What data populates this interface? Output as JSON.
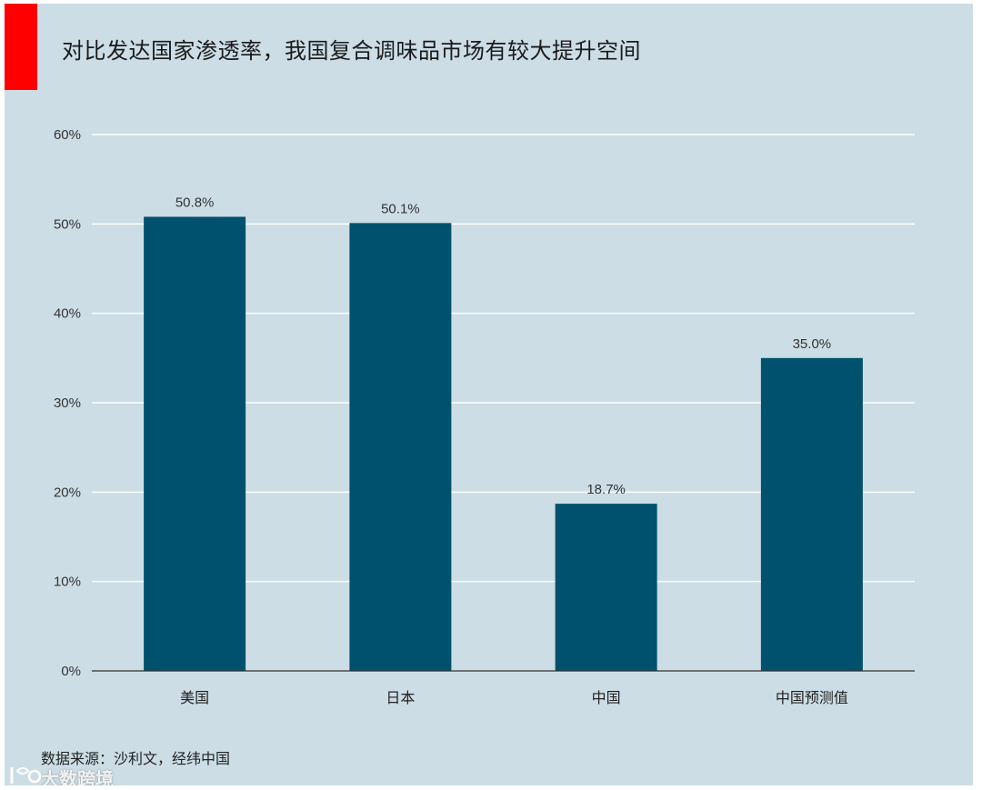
{
  "title": "对比发达国家渗透率，我国复合调味品市场有较大提升空间",
  "source": "数据来源：沙利文，经纬中国",
  "watermark": {
    "text": "大数跨境"
  },
  "colors": {
    "bar": "#00516e",
    "grid": "#ffffff",
    "axis": "#333333",
    "background": "#ccdde5",
    "accent": "#ff0000"
  },
  "chart_data": {
    "type": "bar",
    "categories": [
      "美国",
      "日本",
      "中国",
      "中国预测值"
    ],
    "values": [
      50.8,
      50.1,
      18.7,
      35.0
    ],
    "data_labels": [
      "50.8%",
      "50.1%",
      "18.7%",
      "35.0%"
    ],
    "ylim": [
      0,
      60
    ],
    "yticks": [
      0,
      10,
      20,
      30,
      40,
      50,
      60
    ],
    "ytick_labels": [
      "0%",
      "10%",
      "20%",
      "30%",
      "40%",
      "50%",
      "60%"
    ],
    "grid": true,
    "xlabel": "",
    "ylabel": ""
  }
}
